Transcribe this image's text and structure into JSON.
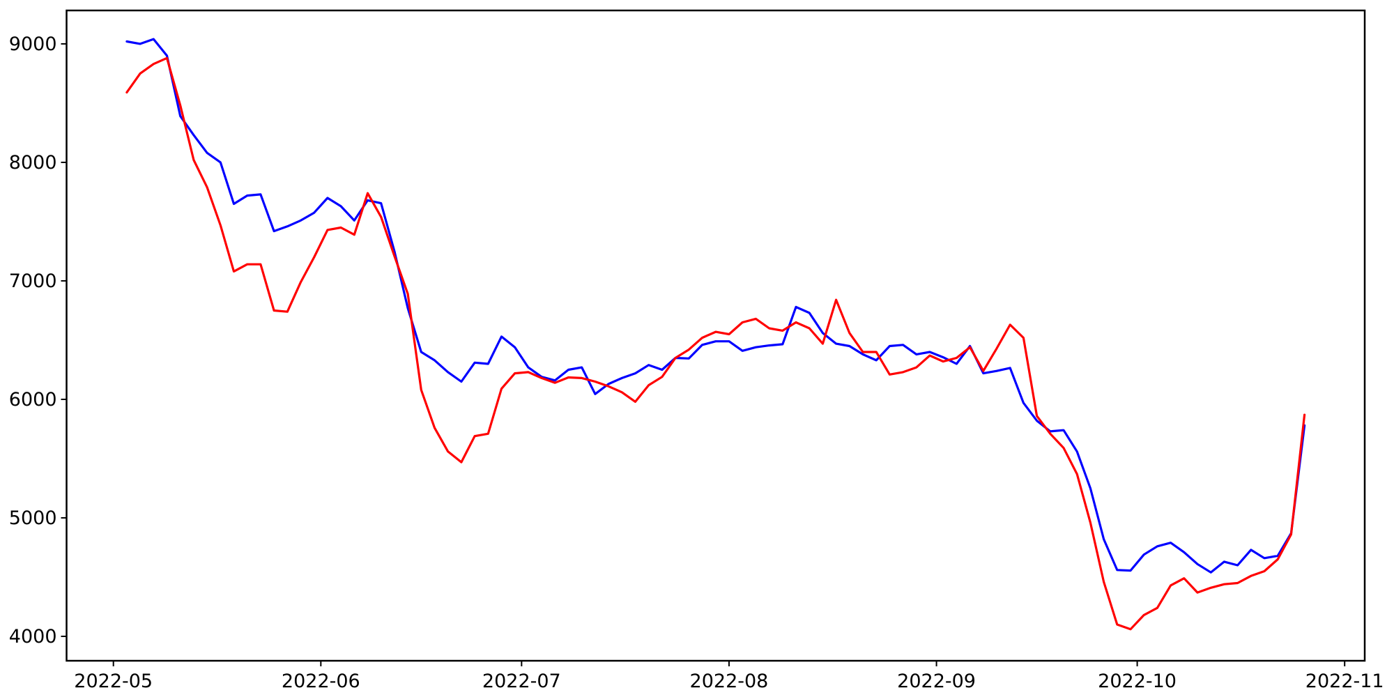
{
  "figure": {
    "background": "#ffffff"
  },
  "chart_data": {
    "type": "line",
    "title": "",
    "xlabel": "",
    "ylabel": "",
    "grid": false,
    "legend": "none",
    "axes_box": true,
    "xlim": [
      "2022-04-24",
      "2022-11-04"
    ],
    "ylim": [
      3794,
      9282
    ],
    "x_ticks": [
      {
        "label": "2022-05",
        "date": "2022-05-01"
      },
      {
        "label": "2022-06",
        "date": "2022-06-01"
      },
      {
        "label": "2022-07",
        "date": "2022-07-01"
      },
      {
        "label": "2022-08",
        "date": "2022-08-01"
      },
      {
        "label": "2022-09",
        "date": "2022-09-01"
      },
      {
        "label": "2022-10",
        "date": "2022-10-01"
      },
      {
        "label": "2022-11",
        "date": "2022-11-01"
      }
    ],
    "y_ticks": [
      {
        "label": "4000",
        "value": 4000
      },
      {
        "label": "5000",
        "value": 5000
      },
      {
        "label": "6000",
        "value": 6000
      },
      {
        "label": "7000",
        "value": 7000
      },
      {
        "label": "8000",
        "value": 8000
      },
      {
        "label": "9000",
        "value": 9000
      }
    ],
    "dates": [
      "2022-05-03",
      "2022-05-05",
      "2022-05-07",
      "2022-05-09",
      "2022-05-11",
      "2022-05-13",
      "2022-05-15",
      "2022-05-17",
      "2022-05-19",
      "2022-05-21",
      "2022-05-23",
      "2022-05-25",
      "2022-05-27",
      "2022-05-29",
      "2022-05-31",
      "2022-06-02",
      "2022-06-04",
      "2022-06-06",
      "2022-06-08",
      "2022-06-10",
      "2022-06-12",
      "2022-06-14",
      "2022-06-16",
      "2022-06-18",
      "2022-06-20",
      "2022-06-22",
      "2022-06-24",
      "2022-06-26",
      "2022-06-28",
      "2022-06-30",
      "2022-07-02",
      "2022-07-04",
      "2022-07-06",
      "2022-07-08",
      "2022-07-10",
      "2022-07-12",
      "2022-07-14",
      "2022-07-16",
      "2022-07-18",
      "2022-07-20",
      "2022-07-22",
      "2022-07-24",
      "2022-07-26",
      "2022-07-28",
      "2022-07-30",
      "2022-08-01",
      "2022-08-03",
      "2022-08-05",
      "2022-08-07",
      "2022-08-09",
      "2022-08-11",
      "2022-08-13",
      "2022-08-15",
      "2022-08-17",
      "2022-08-19",
      "2022-08-21",
      "2022-08-23",
      "2022-08-25",
      "2022-08-27",
      "2022-08-29",
      "2022-08-31",
      "2022-09-02",
      "2022-09-04",
      "2022-09-06",
      "2022-09-08",
      "2022-09-10",
      "2022-09-12",
      "2022-09-14",
      "2022-09-16",
      "2022-09-18",
      "2022-09-20",
      "2022-09-22",
      "2022-09-24",
      "2022-09-26",
      "2022-09-28",
      "2022-09-30",
      "2022-10-02",
      "2022-10-04",
      "2022-10-06",
      "2022-10-08",
      "2022-10-10",
      "2022-10-12",
      "2022-10-14",
      "2022-10-16",
      "2022-10-18",
      "2022-10-20",
      "2022-10-22",
      "2022-10-24",
      "2022-10-26"
    ],
    "series": [
      {
        "name": "blue-series",
        "color": "#0000ff",
        "line_width": 3.2,
        "values": [
          9020,
          9000,
          9040,
          8900,
          8390,
          8230,
          8080,
          8000,
          7650,
          7720,
          7730,
          7420,
          7460,
          7510,
          7575,
          7700,
          7630,
          7510,
          7680,
          7655,
          7250,
          6770,
          6400,
          6330,
          6230,
          6150,
          6310,
          6300,
          6530,
          6440,
          6270,
          6190,
          6160,
          6250,
          6270,
          6045,
          6130,
          6180,
          6220,
          6290,
          6250,
          6350,
          6345,
          6460,
          6490,
          6490,
          6410,
          6440,
          6455,
          6465,
          6780,
          6730,
          6560,
          6470,
          6450,
          6380,
          6330,
          6450,
          6460,
          6380,
          6400,
          6355,
          6300,
          6450,
          6220,
          6240,
          6265,
          5970,
          5820,
          5730,
          5740,
          5560,
          5250,
          4820,
          4560,
          4555,
          4690,
          4760,
          4790,
          4710,
          4610,
          4540,
          4630,
          4600,
          4730,
          4660,
          4680,
          4870,
          5780
        ]
      },
      {
        "name": "red-series",
        "color": "#ff0000",
        "line_width": 3.2,
        "values": [
          8590,
          8750,
          8830,
          8880,
          8480,
          8020,
          7790,
          7470,
          7080,
          7140,
          7140,
          6750,
          6740,
          6990,
          7200,
          7430,
          7450,
          7390,
          7740,
          7540,
          7210,
          6890,
          6080,
          5760,
          5560,
          5470,
          5690,
          5710,
          6090,
          6220,
          6230,
          6180,
          6140,
          6185,
          6180,
          6150,
          6110,
          6060,
          5980,
          6120,
          6190,
          6350,
          6420,
          6520,
          6570,
          6550,
          6650,
          6680,
          6600,
          6580,
          6650,
          6600,
          6470,
          6840,
          6560,
          6400,
          6400,
          6210,
          6230,
          6270,
          6370,
          6320,
          6350,
          6440,
          6240,
          6430,
          6630,
          6520,
          5860,
          5710,
          5590,
          5370,
          4960,
          4460,
          4100,
          4060,
          4180,
          4240,
          4430,
          4490,
          4370,
          4410,
          4440,
          4450,
          4510,
          4550,
          4650,
          4860,
          5870
        ]
      }
    ]
  }
}
